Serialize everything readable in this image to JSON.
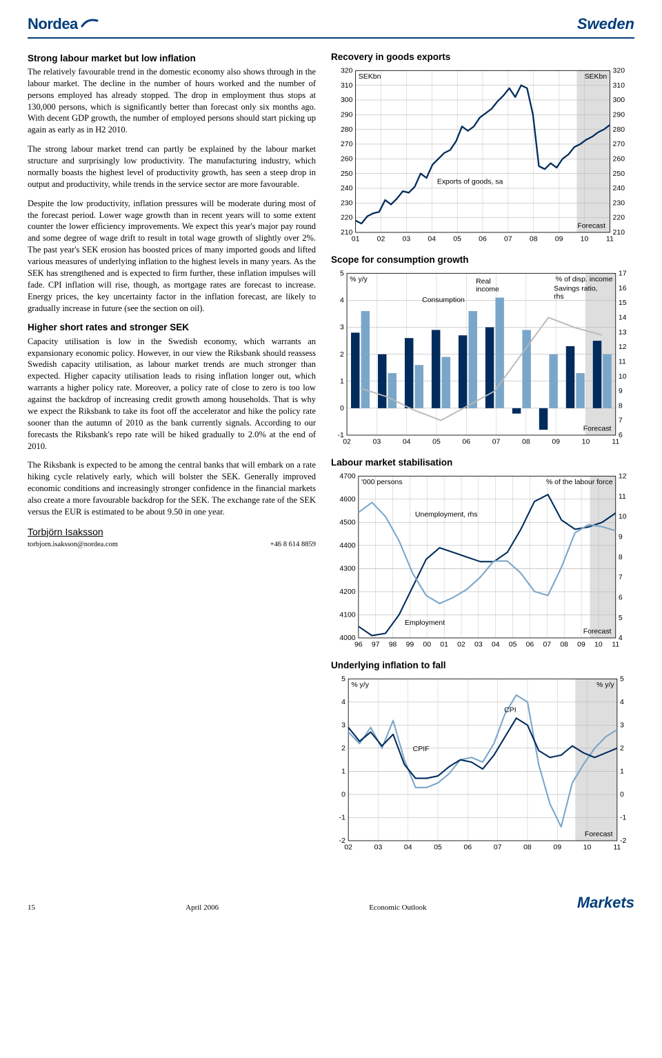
{
  "brand": {
    "name": "Nordea"
  },
  "header": {
    "title": "Sweden"
  },
  "body": {
    "h1": "Strong labour market but low inflation",
    "p1": "The relatively favourable trend in the domestic economy also shows through in the labour market. The decline in the number of hours worked and the number of persons employed has already stopped. The drop in employment thus stops at 130,000 persons, which is significantly better than forecast only six months ago. With decent GDP growth, the number of employed persons should start picking up again as early as in H2 2010.",
    "p2": "The strong labour market trend can partly be explained by the labour market structure and surprisingly low productivity. The manufacturing industry, which normally boasts the highest level of productivity growth, has seen a steep drop in output and productivity, while trends in the service sector are more favourable.",
    "p3": "Despite the low productivity, inflation pressures will be moderate during most of the forecast period. Lower wage growth than in recent years will to some extent counter the lower efficiency improvements. We expect this year's major pay round and some degree of wage drift to result in total wage growth of slightly over 2%. The past year's SEK erosion has boosted prices of many imported goods and lifted various measures of underlying inflation to the highest levels in many years. As the SEK has strengthened and is expected to firm further, these inflation impulses will fade. CPI inflation will rise, though, as mortgage rates are forecast to increase. Energy prices, the key uncertainty factor in the inflation forecast, are likely to gradually increase in future (see the section on oil).",
    "h2": "Higher short rates and stronger SEK",
    "p4": "Capacity utilisation is low in the Swedish economy, which warrants an expansionary economic policy. However, in our view the Riksbank should reassess Swedish capacity utilisation, as labour market trends are much stronger than expected. Higher capacity utilisation leads to rising inflation longer out, which warrants a higher policy rate. Moreover, a policy rate of close to zero is too low against the backdrop of increasing credit growth among households. That is why we expect the Riksbank to take its foot off the accelerator and hike the policy rate sooner than the autumn of 2010 as the bank currently signals. According to our forecasts the Riksbank's repo rate will be hiked gradually to 2.0% at the end of 2010.",
    "p5": "The Riksbank is expected to be among the central banks that will embark on a rate hiking cycle relatively early, which will bolster the SEK. Generally improved economic conditions and increasingly stronger confidence in the financial markets also create a more favourable backdrop for the SEK. The exchange rate of the SEK versus the EUR is estimated to be about 9.50 in one year."
  },
  "author": {
    "name": "Torbjörn Isaksson",
    "email": "torbjorn.isaksson@nordea.com",
    "phone": "+46 8 614 8859"
  },
  "footer": {
    "page": "15",
    "date": "April 2006",
    "doc": "Economic Outlook",
    "brand": "Markets"
  },
  "colors": {
    "brand_blue": "#003d7a",
    "dark_series": "#002b5c",
    "light_series": "#7aa6c9",
    "grid": "#b8b8b8",
    "forecast_band": "#c8c8c8",
    "white": "#ffffff"
  },
  "charts": {
    "exports": {
      "type": "line",
      "title": "Recovery in goods exports",
      "unit_left": "SEKbn",
      "unit_right": "SEKbn",
      "series_label": "Exports of goods, sa",
      "forecast_label": "Forecast",
      "ylim": [
        210,
        320
      ],
      "ytick_step": 10,
      "xlabels": [
        "01",
        "02",
        "03",
        "04",
        "05",
        "06",
        "07",
        "08",
        "09",
        "10",
        "11"
      ],
      "forecast_start_index": 8.7,
      "data": [
        218,
        216,
        221,
        223,
        224,
        232,
        229,
        233,
        238,
        237,
        241,
        250,
        247,
        256,
        260,
        264,
        266,
        272,
        282,
        279,
        282,
        288,
        291,
        294,
        299,
        303,
        308,
        302,
        310,
        308,
        290,
        255,
        253,
        257,
        254,
        260,
        263,
        268,
        270,
        273,
        275,
        278,
        280,
        283
      ],
      "line_color": "#002b5c",
      "line_width": 2.2,
      "label_fontsize": 10
    },
    "consumption": {
      "type": "grouped-bar-with-line",
      "title": "Scope for consumption growth",
      "unit_left": "% y/y",
      "unit_right": "% of disp. income",
      "forecast_label": "Forecast",
      "ylim_left": [
        -1,
        5
      ],
      "ytick_left": 1,
      "ylim_right": [
        6,
        17
      ],
      "ytick_right": 1,
      "xlabels": [
        "02",
        "03",
        "04",
        "05",
        "06",
        "07",
        "08",
        "09",
        "10",
        "11"
      ],
      "forecast_start_index": 8,
      "series": [
        {
          "name": "Consumption",
          "color": "#002b5c",
          "values": [
            2.8,
            2.0,
            2.6,
            2.9,
            2.7,
            3.0,
            -0.2,
            -0.8,
            2.3,
            2.5
          ]
        },
        {
          "name": "Real income",
          "color": "#7aa6c9",
          "values": [
            3.6,
            1.3,
            1.6,
            1.9,
            3.6,
            4.1,
            2.9,
            2.0,
            1.3,
            2.0
          ]
        }
      ],
      "line_series": {
        "name": "Savings ratio, rhs",
        "color": "#b8b8b8",
        "values": [
          9.2,
          8.6,
          7.7,
          7.0,
          8.0,
          9.0,
          11.5,
          14.0,
          13.3,
          12.8
        ]
      },
      "label_fontsize": 10
    },
    "labour": {
      "type": "dual-line",
      "title": "Labour market stabilisation",
      "unit_left": "'000 persons",
      "unit_right": "% of the labour force",
      "forecast_label": "Forecast",
      "ylim_left": [
        4000,
        4700
      ],
      "ytick_left": 100,
      "ylim_right": [
        4,
        12
      ],
      "ytick_right": 1,
      "xlabels": [
        "96",
        "97",
        "98",
        "99",
        "00",
        "01",
        "02",
        "03",
        "04",
        "05",
        "06",
        "07",
        "08",
        "09",
        "10",
        "11"
      ],
      "forecast_start_index": 13.5,
      "series": [
        {
          "name": "Employment",
          "color": "#002b5c",
          "values": [
            4050,
            4010,
            4020,
            4100,
            4220,
            4340,
            4390,
            4370,
            4350,
            4330,
            4330,
            4370,
            4470,
            4590,
            4620,
            4510,
            4470,
            4480,
            4500,
            4540
          ]
        },
        {
          "name": "Unemployment, rhs",
          "color": "#7aa6c9",
          "axis": "right",
          "values": [
            10.2,
            10.7,
            10.0,
            8.8,
            7.2,
            6.1,
            5.7,
            6.0,
            6.4,
            7.0,
            7.8,
            7.8,
            7.2,
            6.3,
            6.1,
            7.5,
            9.2,
            9.6,
            9.5,
            9.3
          ]
        }
      ],
      "label_fontsize": 10
    },
    "inflation": {
      "type": "dual-line",
      "title": "Underlying inflation to fall",
      "unit_left": "% y/y",
      "unit_right": "% y/y",
      "forecast_label": "Forecast",
      "ylim": [
        -2,
        5
      ],
      "ytick_step": 1,
      "xlabels": [
        "02",
        "03",
        "04",
        "05",
        "06",
        "07",
        "08",
        "09",
        "10",
        "11"
      ],
      "forecast_start_index": 7.6,
      "series": [
        {
          "name": "CPI",
          "color": "#7aa6c9",
          "values": [
            2.7,
            2.2,
            2.9,
            2.0,
            3.2,
            1.5,
            0.3,
            0.3,
            0.5,
            0.9,
            1.5,
            1.6,
            1.4,
            2.2,
            3.5,
            4.3,
            4.0,
            1.3,
            -0.4,
            -1.4,
            0.5,
            1.3,
            2.0,
            2.5,
            2.8
          ]
        },
        {
          "name": "CPIF",
          "color": "#002b5c",
          "values": [
            2.9,
            2.3,
            2.7,
            2.1,
            2.6,
            1.3,
            0.7,
            0.7,
            0.8,
            1.2,
            1.5,
            1.4,
            1.1,
            1.7,
            2.5,
            3.3,
            3.0,
            1.9,
            1.6,
            1.7,
            2.1,
            1.8,
            1.6,
            1.8,
            2.0
          ]
        }
      ],
      "label_fontsize": 10
    }
  }
}
